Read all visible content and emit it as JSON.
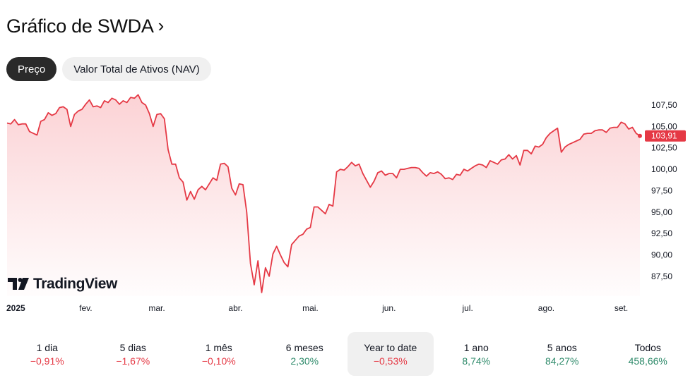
{
  "header": {
    "title": "Gráfico de SWDA",
    "chevron_icon": "chevron-right-icon"
  },
  "tabs": [
    {
      "label": "Preço",
      "active": true
    },
    {
      "label": "Valor Total de Ativos (NAV)",
      "active": false
    }
  ],
  "colors": {
    "line": "#e53945",
    "area_top": "#fbd0d3",
    "positive": "#2e8a6a",
    "negative": "#e53945"
  },
  "watermark": {
    "brand": "TradingView",
    "icon": "tradingview-logo-icon"
  },
  "chart_data": {
    "type": "area",
    "y_ticks": [
      "107,50",
      "105,00",
      "102,50",
      "100,00",
      "97,50",
      "95,00",
      "92,50",
      "90,00",
      "87,50"
    ],
    "y_tick_values": [
      107.5,
      105,
      102.5,
      100,
      97.5,
      95,
      92.5,
      90,
      87.5
    ],
    "x_ticks": [
      "2025",
      "fev.",
      "mar.",
      "abr.",
      "mai.",
      "jun.",
      "jul.",
      "ago.",
      "set."
    ],
    "x_tick_index": [
      0,
      21,
      40,
      61,
      81,
      102,
      123,
      144,
      164
    ],
    "last_value": "103,91",
    "values": [
      105.4,
      105.3,
      105.8,
      105.2,
      105.3,
      105.3,
      104.4,
      104.2,
      104.0,
      105.6,
      105.8,
      106.6,
      106.3,
      106.5,
      107.2,
      107.3,
      107.0,
      105.0,
      106.4,
      106.8,
      107.0,
      107.6,
      108.1,
      107.3,
      107.4,
      107.2,
      108.0,
      107.8,
      108.3,
      108.1,
      107.6,
      108.0,
      107.8,
      108.4,
      108.3,
      108.7,
      107.8,
      107.5,
      106.5,
      105.0,
      106.4,
      106.5,
      105.9,
      102.3,
      100.6,
      100.6,
      99.0,
      98.5,
      96.4,
      97.4,
      96.5,
      97.6,
      98.0,
      97.6,
      98.3,
      99.0,
      98.7,
      100.6,
      100.7,
      100.3,
      97.8,
      97.0,
      98.3,
      98.2,
      95.0,
      89.0,
      86.5,
      89.3,
      85.6,
      88.5,
      87.5,
      90.1,
      91.0,
      90.0,
      89.1,
      88.6,
      91.2,
      91.7,
      92.2,
      92.4,
      93.0,
      93.2,
      95.6,
      95.6,
      95.2,
      94.8,
      95.9,
      95.7,
      99.7,
      100.0,
      99.9,
      100.3,
      100.8,
      100.4,
      100.6,
      99.5,
      98.7,
      97.9,
      98.6,
      99.6,
      99.8,
      99.3,
      99.5,
      99.5,
      99.0,
      100.0,
      100.0,
      100.1,
      100.2,
      100.2,
      100.1,
      99.6,
      99.2,
      99.6,
      99.5,
      99.7,
      99.4,
      98.9,
      99.0,
      98.8,
      99.4,
      99.3,
      100.0,
      99.8,
      100.1,
      100.4,
      100.6,
      100.5,
      100.2,
      101.0,
      100.8,
      100.6,
      101.1,
      101.2,
      101.7,
      101.2,
      101.6,
      100.5,
      102.2,
      102.2,
      101.8,
      102.7,
      102.6,
      102.9,
      103.7,
      104.2,
      104.5,
      104.8,
      102.0,
      102.6,
      102.9,
      103.1,
      103.3,
      103.5,
      104.1,
      104.2,
      104.2,
      104.5,
      104.6,
      104.6,
      104.3,
      104.8,
      104.9,
      104.9,
      105.5,
      105.3,
      104.7,
      104.9,
      104.2,
      103.9
    ]
  },
  "periods": [
    {
      "label": "1 dia",
      "value": "−0,91%",
      "trend": "neg",
      "active": false
    },
    {
      "label": "5 dias",
      "value": "−1,67%",
      "trend": "neg",
      "active": false
    },
    {
      "label": "1 mês",
      "value": "−0,10%",
      "trend": "neg",
      "active": false
    },
    {
      "label": "6 meses",
      "value": "2,30%",
      "trend": "pos",
      "active": false
    },
    {
      "label": "Year to date",
      "value": "−0,53%",
      "trend": "neg",
      "active": true
    },
    {
      "label": "1 ano",
      "value": "8,74%",
      "trend": "pos",
      "active": false
    },
    {
      "label": "5 anos",
      "value": "84,27%",
      "trend": "pos",
      "active": false
    },
    {
      "label": "Todos",
      "value": "458,66%",
      "trend": "pos",
      "active": false
    }
  ]
}
